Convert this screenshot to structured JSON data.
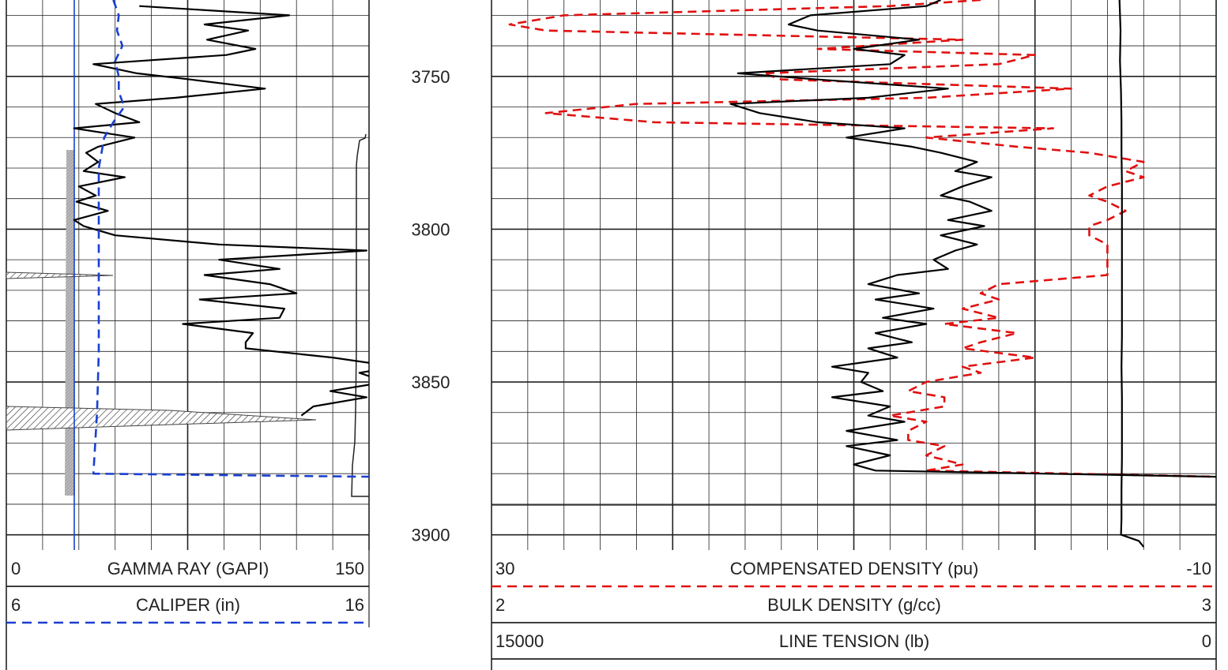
{
  "chart_data": {
    "type": "line",
    "depth_ticks": [
      "3750",
      "3800",
      "3850",
      "3900"
    ],
    "depth_range": [
      3725,
      3905
    ],
    "tracks": [
      {
        "name": "left-track",
        "curves": [
          {
            "key": "gamma_ray",
            "name": "GAMMA RAY (GAPI)",
            "min": "0",
            "max": "150",
            "range": [
              0,
              150
            ],
            "color": "#000000",
            "style": "solid",
            "depth": [
              3727,
              3730,
              3733,
              3735,
              3738,
              3741,
              3743,
              3746,
              3749,
              3751,
              3754,
              3757,
              3759,
              3762,
              3765,
              3767,
              3770,
              3773,
              3775,
              3778,
              3781,
              3783,
              3786,
              3789,
              3791,
              3794,
              3797,
              3799,
              3802,
              3805,
              3807,
              3810,
              3813,
              3815,
              3818,
              3821,
              3823,
              3826,
              3829,
              3831,
              3834,
              3837,
              3839,
              3842,
              3845,
              3847,
              3850,
              3853,
              3855,
              3858,
              3861
            ],
            "values": [
              55,
              117,
              82,
              100,
              83,
              103,
              91,
              36,
              54,
              76,
              107,
              70,
              37,
              45,
              55,
              28,
              53,
              38,
              33,
              38,
              32,
              49,
              30,
              37,
              29,
              42,
              28,
              32,
              45,
              88,
              149,
              88,
              113,
              82,
              109,
              120,
              80,
              115,
              113,
              73,
              102,
              99,
              99,
              135,
              161,
              146,
              157,
              134,
              149,
              127,
              122
            ]
          },
          {
            "key": "caliper",
            "name": "CALIPER (in)",
            "min": "6",
            "max": "16",
            "range": [
              6,
              16
            ],
            "color": "#1a3fd0",
            "style": "dashed",
            "depth": [
              3725,
              3730,
              3735,
              3740,
              3745,
              3750,
              3755,
              3760,
              3765,
              3770,
              3780,
              3800,
              3820,
              3840,
              3860,
              3870,
              3880,
              3881
            ],
            "values": [
              8.95,
              9.1,
              9.05,
              9.2,
              9.0,
              9.1,
              9.1,
              9.25,
              8.95,
              8.7,
              8.55,
              8.55,
              8.55,
              8.55,
              8.5,
              8.45,
              8.4,
              16.0
            ]
          }
        ]
      },
      {
        "name": "right-track",
        "curves": [
          {
            "key": "comp_density",
            "name": "COMPENSATED DENSITY (pu)",
            "min": "30",
            "max": "-10",
            "range": [
              30,
              -10
            ],
            "color": "#e01010",
            "style": "dashed",
            "depth": [
              3725,
              3727,
              3730,
              3733,
              3735,
              3738,
              3741,
              3743,
              3746,
              3749,
              3751,
              3754,
              3757,
              3759,
              3762,
              3765,
              3767,
              3770,
              3773,
              3775,
              3778,
              3781,
              3783,
              3786,
              3789,
              3791,
              3794,
              3797,
              3799,
              3802,
              3805,
              3807,
              3810,
              3813,
              3815,
              3818,
              3821,
              3823,
              3826,
              3829,
              3831,
              3834,
              3837,
              3839,
              3842,
              3845,
              3847,
              3850,
              3853,
              3855,
              3858,
              3861,
              3863,
              3866,
              3869,
              3871,
              3874,
              3877,
              3879,
              3881
            ],
            "values": [
              3,
              8,
              26,
              29,
              27,
              4,
              12,
              0,
              2,
              15,
              14,
              -2,
              6,
              22,
              27,
              21,
              -1,
              6,
              1,
              -3,
              -6,
              -5,
              -6,
              -4,
              -3,
              -4,
              -5,
              -4,
              -3,
              -3,
              -4,
              -4,
              -4,
              -4,
              -4,
              2,
              3,
              2,
              4,
              2,
              5,
              1,
              3,
              4,
              0,
              4,
              3,
              6,
              7,
              5,
              5,
              8,
              6,
              7,
              7,
              5,
              6,
              4,
              6,
              -10
            ]
          },
          {
            "key": "bulk_density",
            "name": "BULK DENSITY (g/cc)",
            "min": "2",
            "max": "3",
            "range": [
              2,
              3
            ],
            "color": "#000000",
            "style": "solid",
            "depth": [
              3725,
              3727,
              3730,
              3733,
              3735,
              3738,
              3741,
              3743,
              3746,
              3749,
              3751,
              3754,
              3757,
              3759,
              3762,
              3765,
              3767,
              3770,
              3773,
              3775,
              3778,
              3781,
              3783,
              3786,
              3789,
              3791,
              3794,
              3797,
              3799,
              3802,
              3805,
              3807,
              3810,
              3813,
              3815,
              3818,
              3821,
              3823,
              3826,
              3829,
              3831,
              3834,
              3837,
              3839,
              3842,
              3845,
              3847,
              3850,
              3853,
              3855,
              3858,
              3861,
              3863,
              3866,
              3869,
              3871,
              3874,
              3877,
              3879,
              3881
            ],
            "values": [
              2.62,
              2.6,
              2.44,
              2.41,
              2.45,
              2.59,
              2.5,
              2.57,
              2.55,
              2.34,
              2.45,
              2.63,
              2.52,
              2.33,
              2.37,
              2.45,
              2.57,
              2.49,
              2.58,
              2.62,
              2.67,
              2.64,
              2.69,
              2.65,
              2.62,
              2.66,
              2.69,
              2.63,
              2.68,
              2.62,
              2.67,
              2.64,
              2.61,
              2.63,
              2.56,
              2.52,
              2.59,
              2.53,
              2.61,
              2.54,
              2.6,
              2.53,
              2.58,
              2.52,
              2.56,
              2.47,
              2.52,
              2.51,
              2.54,
              2.47,
              2.55,
              2.52,
              2.57,
              2.49,
              2.56,
              2.49,
              2.55,
              2.5,
              2.53,
              3.0
            ]
          },
          {
            "key": "line_tension",
            "name": "LINE TENSION (lb)",
            "min": "15000",
            "max": "0",
            "range": [
              15000,
              0
            ],
            "color": "#000000",
            "style": "solid",
            "depth": [
              3725,
              3735,
              3745,
              3755,
              3765,
              3775,
              3785,
              3795,
              3805,
              3815,
              3825,
              3835,
              3845,
              3855,
              3865,
              3875,
              3885,
              3895,
              3900,
              3902,
              3904
            ],
            "values": [
              2000,
              1980,
              1990,
              1970,
              1960,
              1960,
              1950,
              1950,
              1950,
              1950,
              1950,
              1950,
              1960,
              1950,
              1950,
              1950,
              1960,
              1960,
              1970,
              1600,
              1500
            ]
          }
        ]
      }
    ],
    "grid": true
  }
}
